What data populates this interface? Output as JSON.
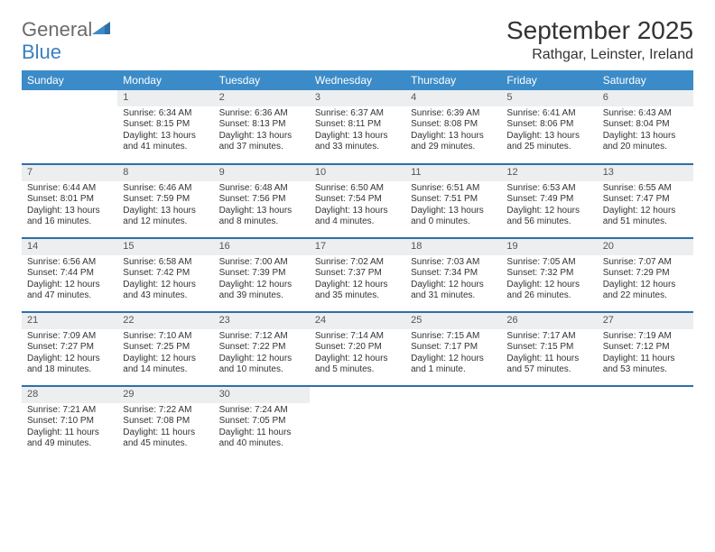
{
  "logo": {
    "word1": "General",
    "word2": "Blue"
  },
  "title": "September 2025",
  "location": "Rathgar, Leinster, Ireland",
  "colors": {
    "header_bg": "#3b8bc8",
    "header_text": "#ffffff",
    "daynum_bg": "#eceeef",
    "row_border": "#2f6fa8",
    "logo_gray": "#6b6b6b",
    "logo_blue": "#3b7fbf"
  },
  "day_headers": [
    "Sunday",
    "Monday",
    "Tuesday",
    "Wednesday",
    "Thursday",
    "Friday",
    "Saturday"
  ],
  "weeks": [
    [
      {
        "n": "",
        "sr": "",
        "ss": "",
        "dl": ""
      },
      {
        "n": "1",
        "sr": "Sunrise: 6:34 AM",
        "ss": "Sunset: 8:15 PM",
        "dl": "Daylight: 13 hours and 41 minutes."
      },
      {
        "n": "2",
        "sr": "Sunrise: 6:36 AM",
        "ss": "Sunset: 8:13 PM",
        "dl": "Daylight: 13 hours and 37 minutes."
      },
      {
        "n": "3",
        "sr": "Sunrise: 6:37 AM",
        "ss": "Sunset: 8:11 PM",
        "dl": "Daylight: 13 hours and 33 minutes."
      },
      {
        "n": "4",
        "sr": "Sunrise: 6:39 AM",
        "ss": "Sunset: 8:08 PM",
        "dl": "Daylight: 13 hours and 29 minutes."
      },
      {
        "n": "5",
        "sr": "Sunrise: 6:41 AM",
        "ss": "Sunset: 8:06 PM",
        "dl": "Daylight: 13 hours and 25 minutes."
      },
      {
        "n": "6",
        "sr": "Sunrise: 6:43 AM",
        "ss": "Sunset: 8:04 PM",
        "dl": "Daylight: 13 hours and 20 minutes."
      }
    ],
    [
      {
        "n": "7",
        "sr": "Sunrise: 6:44 AM",
        "ss": "Sunset: 8:01 PM",
        "dl": "Daylight: 13 hours and 16 minutes."
      },
      {
        "n": "8",
        "sr": "Sunrise: 6:46 AM",
        "ss": "Sunset: 7:59 PM",
        "dl": "Daylight: 13 hours and 12 minutes."
      },
      {
        "n": "9",
        "sr": "Sunrise: 6:48 AM",
        "ss": "Sunset: 7:56 PM",
        "dl": "Daylight: 13 hours and 8 minutes."
      },
      {
        "n": "10",
        "sr": "Sunrise: 6:50 AM",
        "ss": "Sunset: 7:54 PM",
        "dl": "Daylight: 13 hours and 4 minutes."
      },
      {
        "n": "11",
        "sr": "Sunrise: 6:51 AM",
        "ss": "Sunset: 7:51 PM",
        "dl": "Daylight: 13 hours and 0 minutes."
      },
      {
        "n": "12",
        "sr": "Sunrise: 6:53 AM",
        "ss": "Sunset: 7:49 PM",
        "dl": "Daylight: 12 hours and 56 minutes."
      },
      {
        "n": "13",
        "sr": "Sunrise: 6:55 AM",
        "ss": "Sunset: 7:47 PM",
        "dl": "Daylight: 12 hours and 51 minutes."
      }
    ],
    [
      {
        "n": "14",
        "sr": "Sunrise: 6:56 AM",
        "ss": "Sunset: 7:44 PM",
        "dl": "Daylight: 12 hours and 47 minutes."
      },
      {
        "n": "15",
        "sr": "Sunrise: 6:58 AM",
        "ss": "Sunset: 7:42 PM",
        "dl": "Daylight: 12 hours and 43 minutes."
      },
      {
        "n": "16",
        "sr": "Sunrise: 7:00 AM",
        "ss": "Sunset: 7:39 PM",
        "dl": "Daylight: 12 hours and 39 minutes."
      },
      {
        "n": "17",
        "sr": "Sunrise: 7:02 AM",
        "ss": "Sunset: 7:37 PM",
        "dl": "Daylight: 12 hours and 35 minutes."
      },
      {
        "n": "18",
        "sr": "Sunrise: 7:03 AM",
        "ss": "Sunset: 7:34 PM",
        "dl": "Daylight: 12 hours and 31 minutes."
      },
      {
        "n": "19",
        "sr": "Sunrise: 7:05 AM",
        "ss": "Sunset: 7:32 PM",
        "dl": "Daylight: 12 hours and 26 minutes."
      },
      {
        "n": "20",
        "sr": "Sunrise: 7:07 AM",
        "ss": "Sunset: 7:29 PM",
        "dl": "Daylight: 12 hours and 22 minutes."
      }
    ],
    [
      {
        "n": "21",
        "sr": "Sunrise: 7:09 AM",
        "ss": "Sunset: 7:27 PM",
        "dl": "Daylight: 12 hours and 18 minutes."
      },
      {
        "n": "22",
        "sr": "Sunrise: 7:10 AM",
        "ss": "Sunset: 7:25 PM",
        "dl": "Daylight: 12 hours and 14 minutes."
      },
      {
        "n": "23",
        "sr": "Sunrise: 7:12 AM",
        "ss": "Sunset: 7:22 PM",
        "dl": "Daylight: 12 hours and 10 minutes."
      },
      {
        "n": "24",
        "sr": "Sunrise: 7:14 AM",
        "ss": "Sunset: 7:20 PM",
        "dl": "Daylight: 12 hours and 5 minutes."
      },
      {
        "n": "25",
        "sr": "Sunrise: 7:15 AM",
        "ss": "Sunset: 7:17 PM",
        "dl": "Daylight: 12 hours and 1 minute."
      },
      {
        "n": "26",
        "sr": "Sunrise: 7:17 AM",
        "ss": "Sunset: 7:15 PM",
        "dl": "Daylight: 11 hours and 57 minutes."
      },
      {
        "n": "27",
        "sr": "Sunrise: 7:19 AM",
        "ss": "Sunset: 7:12 PM",
        "dl": "Daylight: 11 hours and 53 minutes."
      }
    ],
    [
      {
        "n": "28",
        "sr": "Sunrise: 7:21 AM",
        "ss": "Sunset: 7:10 PM",
        "dl": "Daylight: 11 hours and 49 minutes."
      },
      {
        "n": "29",
        "sr": "Sunrise: 7:22 AM",
        "ss": "Sunset: 7:08 PM",
        "dl": "Daylight: 11 hours and 45 minutes."
      },
      {
        "n": "30",
        "sr": "Sunrise: 7:24 AM",
        "ss": "Sunset: 7:05 PM",
        "dl": "Daylight: 11 hours and 40 minutes."
      },
      {
        "n": "",
        "sr": "",
        "ss": "",
        "dl": ""
      },
      {
        "n": "",
        "sr": "",
        "ss": "",
        "dl": ""
      },
      {
        "n": "",
        "sr": "",
        "ss": "",
        "dl": ""
      },
      {
        "n": "",
        "sr": "",
        "ss": "",
        "dl": ""
      }
    ]
  ]
}
